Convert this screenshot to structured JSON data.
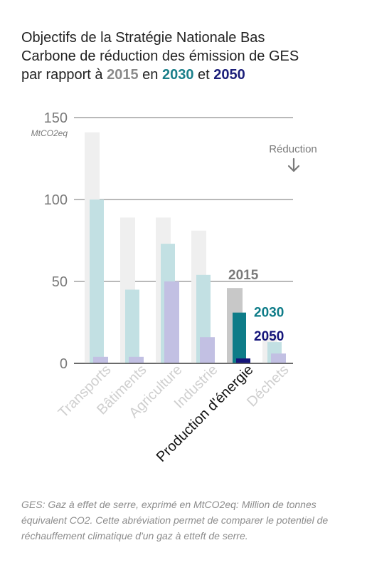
{
  "title": {
    "line1": "Objectifs de la Stratégie Nationale Bas",
    "line2": "Carbone de réduction des émission de GES",
    "line3_prefix": "par rapport à",
    "year_2015": "2015",
    "mid": "en",
    "year_2030": "2030",
    "and": "et",
    "year_2050": "2050"
  },
  "footnote": "GES: Gaz à effet de serre, exprimé en MtCO2eq: Million de tonnes équivalent CO2. Cette abréviation permet de comparer le potentiel de réchauffement climatique d'un gaz à etteft de serre.",
  "colors": {
    "2015": "#efefef",
    "2030": "#c2e0e3",
    "2050": "#c2c0e3",
    "2015_highlight": "#c8c8c8",
    "2030_highlight": "#0e7c88",
    "2050_highlight": "#15157a"
  },
  "chart_data": {
    "type": "bar",
    "unit": "MtCO2eq",
    "reduction_label": "Réduction",
    "categories": [
      "Transports",
      "Bâtiments",
      "Agriculture",
      "Industrie",
      "Production d'énergie",
      "Déchets"
    ],
    "highlight_category": "Production d'énergie",
    "series": [
      {
        "name": "2015",
        "values": [
          141,
          89,
          89,
          81,
          46,
          17
        ]
      },
      {
        "name": "2030",
        "values": [
          100,
          45,
          73,
          54,
          31,
          13
        ]
      },
      {
        "name": "2050",
        "values": [
          4,
          4,
          50,
          16,
          3,
          6
        ]
      }
    ],
    "yticks": [
      0,
      50,
      100,
      150
    ],
    "ylim": [
      0,
      150
    ],
    "grid": true
  }
}
